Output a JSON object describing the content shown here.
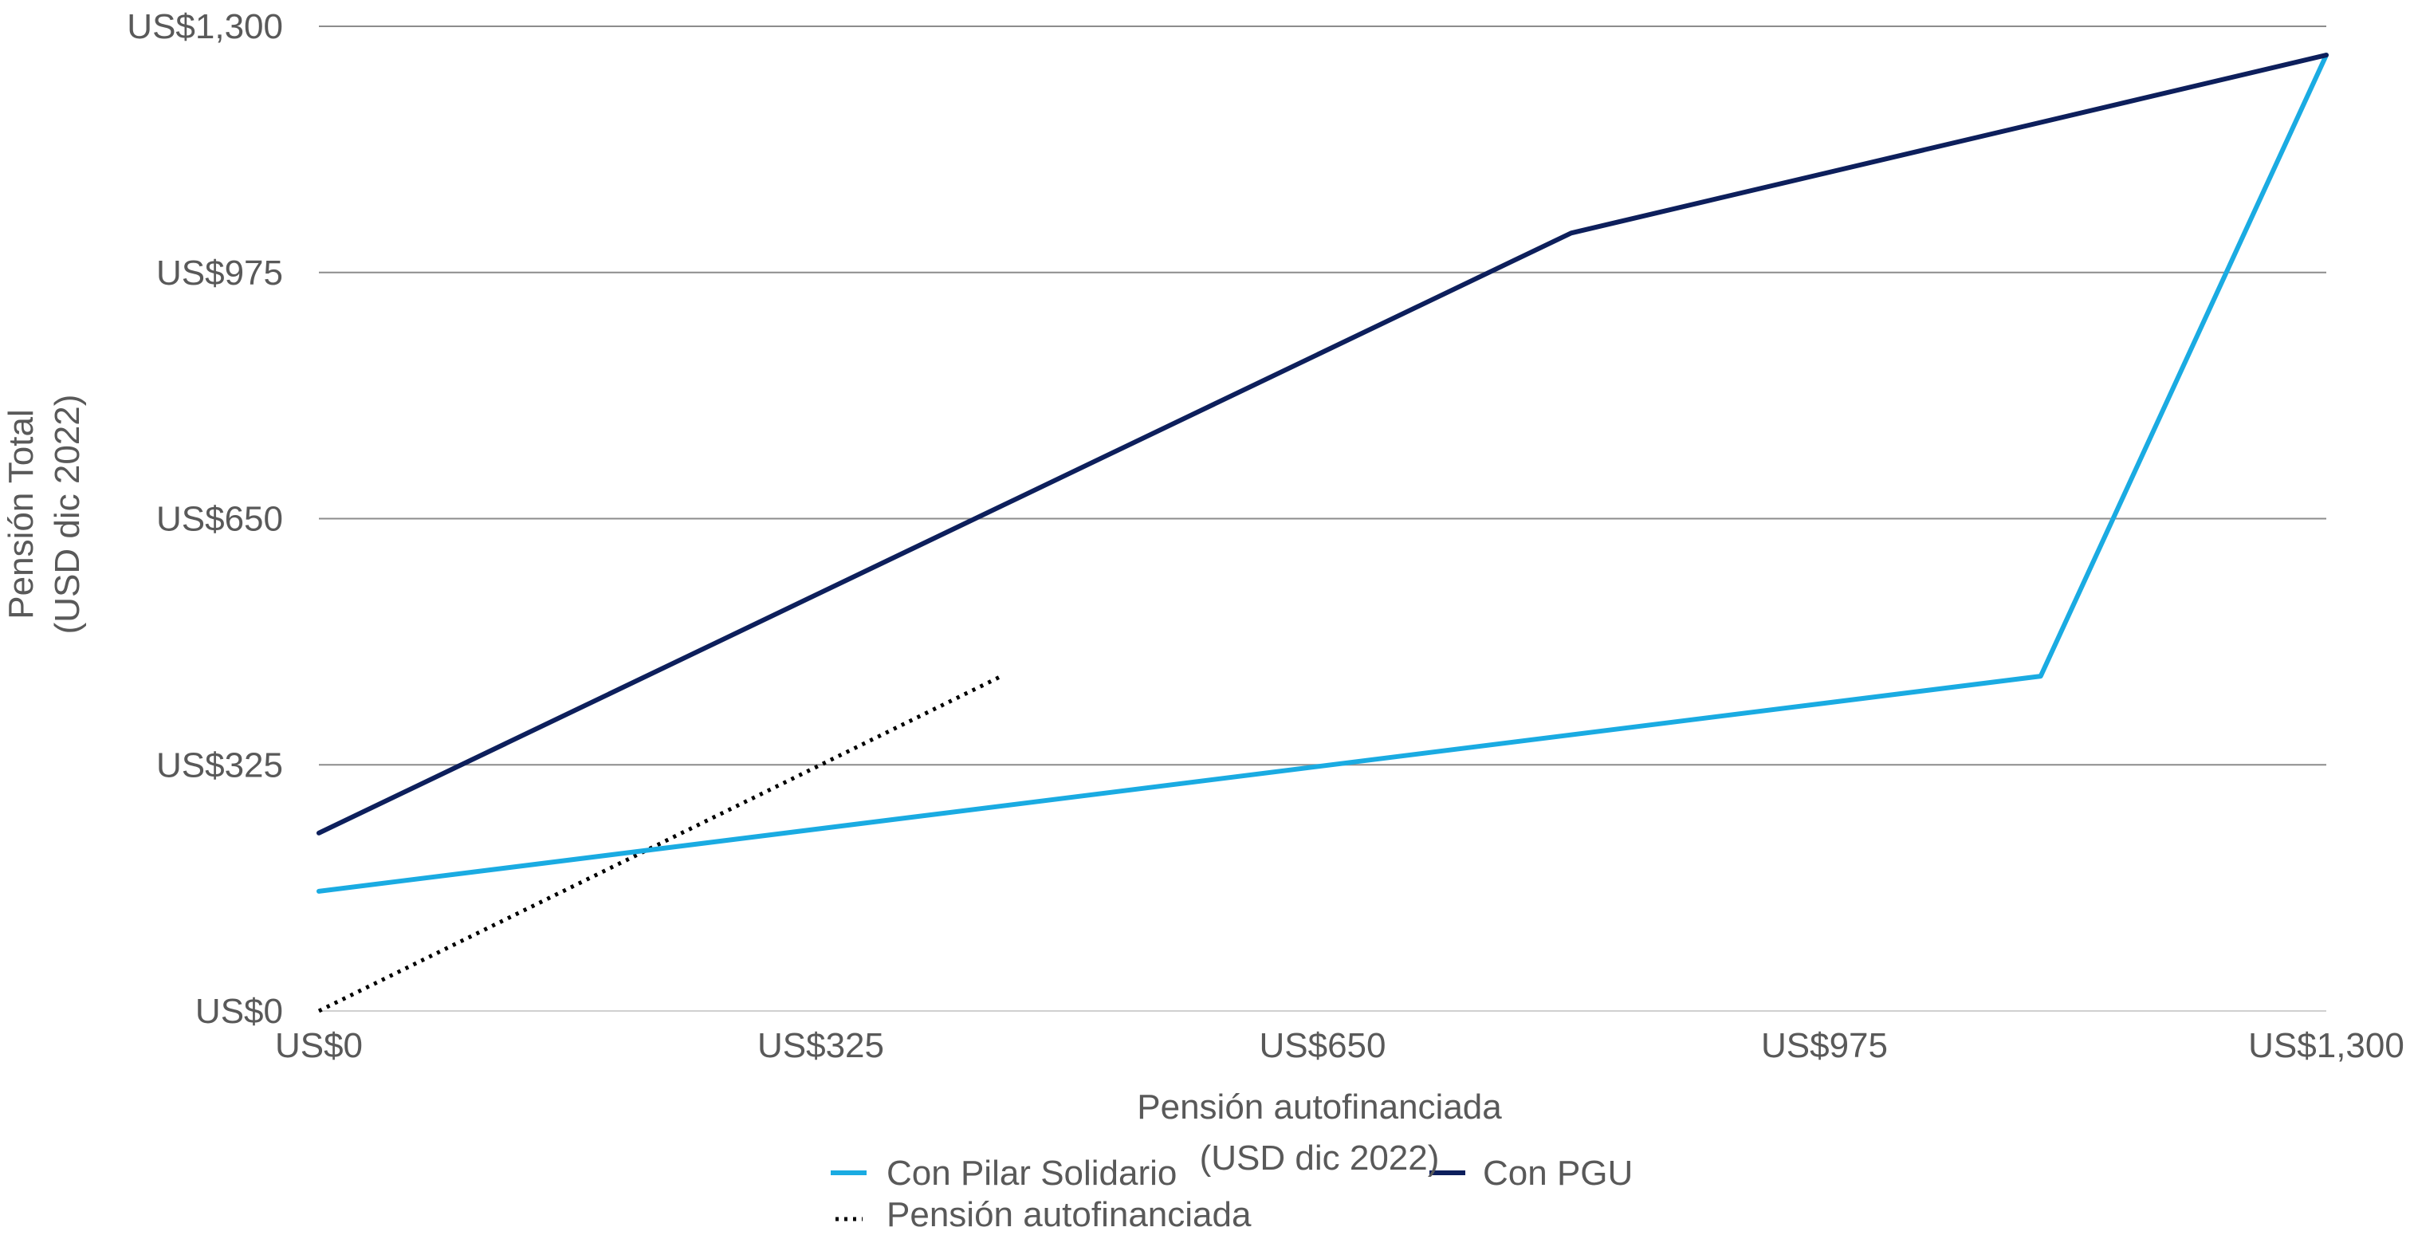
{
  "chart_data": {
    "type": "line",
    "xlabel": [
      "Pensión autofinanciada",
      "(USD dic 2022)"
    ],
    "ylabel": [
      "Pensión Total",
      "(USD dic 2022)"
    ],
    "xlim": [
      0,
      1300
    ],
    "ylim": [
      0,
      1300
    ],
    "x_ticks": [
      0,
      325,
      650,
      975,
      1300
    ],
    "x_tick_labels": [
      "US$0",
      "US$325",
      "US$650",
      "US$975",
      "US$1,300"
    ],
    "y_ticks": [
      0,
      325,
      650,
      975,
      1300
    ],
    "y_tick_labels": [
      "US$0",
      "US$325",
      "US$650",
      "US$975",
      "US$1,300"
    ],
    "grid": "horizontal",
    "legend_position": "bottom",
    "series": [
      {
        "name": "Con Pilar Solidario",
        "color": "#1AABE2",
        "style": "solid",
        "points": [
          [
            0,
            158
          ],
          [
            1115,
            442
          ],
          [
            1300,
            1262
          ]
        ]
      },
      {
        "name": "Con PGU",
        "color": "#0D1F5C",
        "style": "solid",
        "points": [
          [
            0,
            235
          ],
          [
            811,
            1027
          ],
          [
            1300,
            1262
          ]
        ]
      },
      {
        "name": "Pensión autofinanciada",
        "color": "#000000",
        "style": "dotted",
        "points": [
          [
            0,
            0
          ],
          [
            442,
            442
          ]
        ]
      }
    ]
  }
}
